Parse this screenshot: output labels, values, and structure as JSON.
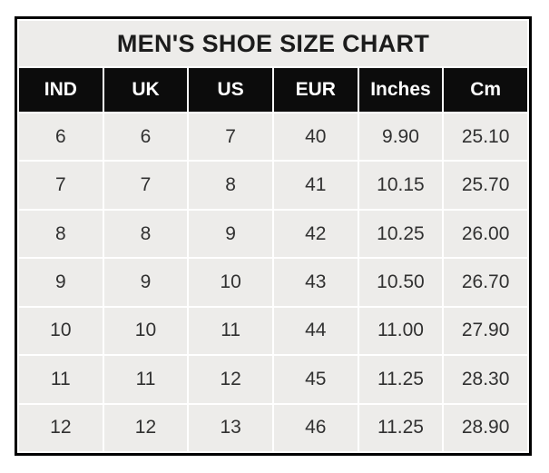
{
  "page": {
    "background": "#ffffff"
  },
  "colors": {
    "frame_border": "#000000",
    "cell_background": "#edecea",
    "grid_lines": "#ffffff",
    "header_background": "#0c0c0c",
    "header_text": "#ffffff",
    "title_text": "#1c1c1c",
    "data_text": "#313131"
  },
  "chart_data": {
    "type": "table",
    "title": "MEN'S SHOE SIZE CHART",
    "columns": [
      "IND",
      "UK",
      "US",
      "EUR",
      "Inches",
      "Cm"
    ],
    "rows": [
      [
        "6",
        "6",
        "7",
        "40",
        "9.90",
        "25.10"
      ],
      [
        "7",
        "7",
        "8",
        "41",
        "10.15",
        "25.70"
      ],
      [
        "8",
        "8",
        "9",
        "42",
        "10.25",
        "26.00"
      ],
      [
        "9",
        "9",
        "10",
        "43",
        "10.50",
        "26.70"
      ],
      [
        "10",
        "10",
        "11",
        "44",
        "11.00",
        "27.90"
      ],
      [
        "11",
        "11",
        "12",
        "45",
        "11.25",
        "28.30"
      ],
      [
        "12",
        "12",
        "13",
        "46",
        "11.25",
        "28.90"
      ]
    ]
  }
}
